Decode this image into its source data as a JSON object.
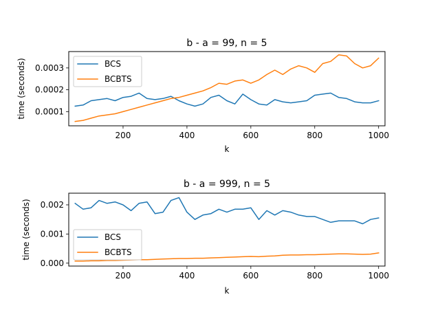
{
  "chart_data": [
    {
      "type": "line",
      "title": "b - a = 99, n = 5",
      "xlabel": "k",
      "ylabel": "time (seconds)",
      "xlim": [
        30,
        1020
      ],
      "ylim": [
        3.5e-05,
        0.000375
      ],
      "xticks": [
        200,
        400,
        600,
        800,
        1000
      ],
      "xtick_labels": [
        "200",
        "400",
        "600",
        "800",
        "1000"
      ],
      "yticks": [
        0.0001,
        0.0002,
        0.0003
      ],
      "ytick_labels": [
        "0.0001",
        "0.0002",
        "0.0003"
      ],
      "legend_position": "upper-left",
      "grid": false,
      "x": [
        50,
        75,
        100,
        125,
        150,
        175,
        200,
        225,
        250,
        275,
        300,
        325,
        350,
        375,
        400,
        425,
        450,
        475,
        500,
        525,
        550,
        575,
        600,
        625,
        650,
        675,
        700,
        725,
        750,
        775,
        800,
        825,
        850,
        875,
        900,
        925,
        950,
        975,
        1000
      ],
      "series": [
        {
          "name": "BCS",
          "color": "#1f77b4",
          "values": [
            0.000125,
            0.00013,
            0.00015,
            0.000155,
            0.00016,
            0.00015,
            0.000165,
            0.00017,
            0.000185,
            0.00016,
            0.000155,
            0.00016,
            0.00017,
            0.00015,
            0.000135,
            0.000125,
            0.000135,
            0.000165,
            0.000175,
            0.00015,
            0.000135,
            0.00018,
            0.000155,
            0.000135,
            0.00013,
            0.000155,
            0.000145,
            0.00014,
            0.000145,
            0.00015,
            0.000175,
            0.00018,
            0.000185,
            0.000165,
            0.00016,
            0.000145,
            0.00014,
            0.00014,
            0.00015
          ]
        },
        {
          "name": "BCBTS",
          "color": "#ff7f0e",
          "values": [
            5.5e-05,
            6e-05,
            7e-05,
            8e-05,
            8.5e-05,
            9e-05,
            0.0001,
            0.00011,
            0.00012,
            0.00013,
            0.00014,
            0.00015,
            0.00016,
            0.000165,
            0.000175,
            0.000185,
            0.000195,
            0.00021,
            0.00023,
            0.000225,
            0.00024,
            0.000245,
            0.00023,
            0.000245,
            0.00027,
            0.00029,
            0.00027,
            0.000295,
            0.00031,
            0.0003,
            0.00028,
            0.00032,
            0.00033,
            0.00036,
            0.000355,
            0.00032,
            0.0003,
            0.00031,
            0.000345
          ]
        }
      ]
    },
    {
      "type": "line",
      "title": "b - a = 999, n = 5",
      "xlabel": "k",
      "ylabel": "time (seconds)",
      "xlim": [
        30,
        1020
      ],
      "ylim": [
        -0.0001,
        0.0024
      ],
      "xticks": [
        200,
        400,
        600,
        800,
        1000
      ],
      "xtick_labels": [
        "200",
        "400",
        "600",
        "800",
        "1000"
      ],
      "yticks": [
        0.0,
        0.001,
        0.002
      ],
      "ytick_labels": [
        "0.000",
        "0.001",
        "0.002"
      ],
      "legend_position": "center-left",
      "grid": false,
      "x": [
        50,
        75,
        100,
        125,
        150,
        175,
        200,
        225,
        250,
        275,
        300,
        325,
        350,
        375,
        400,
        425,
        450,
        475,
        500,
        525,
        550,
        575,
        600,
        625,
        650,
        675,
        700,
        725,
        750,
        775,
        800,
        825,
        850,
        875,
        900,
        925,
        950,
        975,
        1000
      ],
      "series": [
        {
          "name": "BCS",
          "color": "#1f77b4",
          "values": [
            0.00205,
            0.00185,
            0.0019,
            0.00215,
            0.00205,
            0.0021,
            0.002,
            0.0018,
            0.00205,
            0.0021,
            0.0017,
            0.00175,
            0.00215,
            0.00225,
            0.00175,
            0.0015,
            0.00165,
            0.0017,
            0.00185,
            0.00175,
            0.00185,
            0.00185,
            0.0019,
            0.0015,
            0.0018,
            0.00165,
            0.0018,
            0.00175,
            0.00165,
            0.0016,
            0.0016,
            0.0015,
            0.0014,
            0.00145,
            0.00145,
            0.00145,
            0.00135,
            0.0015,
            0.00155
          ]
        },
        {
          "name": "BCBTS",
          "color": "#ff7f0e",
          "values": [
            7e-05,
            7e-05,
            8e-05,
            8e-05,
            9e-05,
            9e-05,
            0.0001,
            0.00011,
            0.00012,
            0.00012,
            0.00013,
            0.00014,
            0.00015,
            0.00016,
            0.00016,
            0.00017,
            0.00017,
            0.00018,
            0.00019,
            0.0002,
            0.00021,
            0.00022,
            0.00023,
            0.00022,
            0.00024,
            0.00025,
            0.00027,
            0.00028,
            0.00028,
            0.00029,
            0.00029,
            0.0003,
            0.00031,
            0.00032,
            0.00032,
            0.00031,
            0.0003,
            0.00031,
            0.00035
          ]
        }
      ]
    }
  ]
}
